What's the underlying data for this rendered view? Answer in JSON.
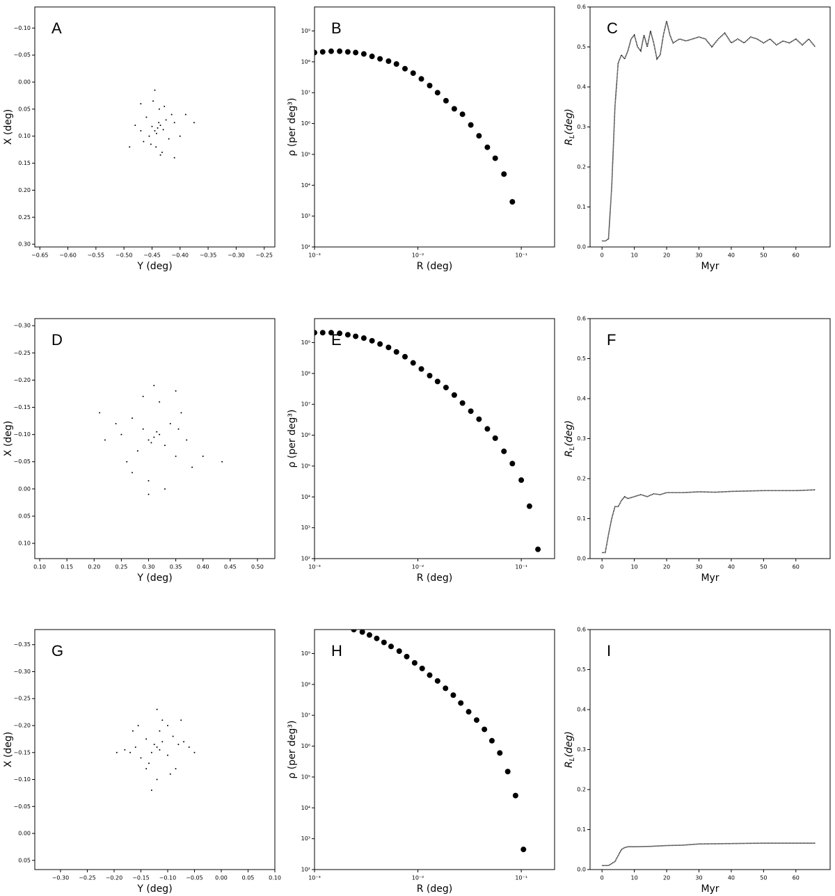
{
  "chart_data": [
    {
      "type": "scatter",
      "label": "A",
      "xlabel": "Y (deg)",
      "ylabel": "X (deg)",
      "color": "#000000",
      "x": [
        -0.44,
        -0.445,
        -0.435,
        -0.43,
        -0.45,
        -0.438,
        -0.442,
        -0.425,
        -0.455,
        -0.46,
        -0.42,
        -0.415,
        -0.465,
        -0.47,
        -0.41,
        -0.437,
        -0.443,
        -0.448,
        -0.432,
        -0.428,
        -0.452,
        -0.48,
        -0.4,
        -0.39,
        -0.49,
        -0.445,
        -0.435,
        -0.47,
        -0.41,
        -0.375
      ],
      "values": [
        0.085,
        0.09,
        0.08,
        0.088,
        0.082,
        0.075,
        0.095,
        0.07,
        0.1,
        0.065,
        0.105,
        0.06,
        0.11,
        0.09,
        0.075,
        0.05,
        0.12,
        0.035,
        0.13,
        0.045,
        0.115,
        0.08,
        0.1,
        0.06,
        0.12,
        0.015,
        0.135,
        0.04,
        0.14,
        0.075
      ],
      "xlim": [
        -0.659,
        -0.231
      ],
      "ylim": [
        0.305,
        -0.139
      ],
      "xticks": [
        {
          "value": -0.65,
          "label": "−0.65"
        },
        {
          "value": -0.6,
          "label": "−0.60"
        },
        {
          "value": -0.55,
          "label": "−0.55"
        },
        {
          "value": -0.5,
          "label": "−0.50"
        },
        {
          "value": -0.45,
          "label": "−0.45"
        },
        {
          "value": -0.4,
          "label": "−0.40"
        },
        {
          "value": -0.35,
          "label": "−0.35"
        },
        {
          "value": -0.3,
          "label": "−0.30"
        },
        {
          "value": -0.25,
          "label": "−0.25"
        }
      ],
      "yticks": [
        {
          "value": -0.1,
          "label": "−0.10"
        },
        {
          "value": -0.05,
          "label": "−0.05"
        },
        {
          "value": 0,
          "label": "0.00"
        },
        {
          "value": 0.05,
          "label": "0.05"
        },
        {
          "value": 0.1,
          "label": "0.10"
        },
        {
          "value": 0.15,
          "label": "0.15"
        },
        {
          "value": 0.2,
          "label": "0.20"
        },
        {
          "value": 0.25,
          "label": "0.25"
        },
        {
          "value": 0.3,
          "label": "0.30"
        }
      ]
    },
    {
      "type": "scatter",
      "label": "B",
      "xlabel": "R (deg)",
      "ylabel": "ρ (per deg³)",
      "color": "#000000",
      "xscale": "log",
      "yscale": "log",
      "x": [
        0.001,
        0.0012,
        0.00145,
        0.00175,
        0.0021,
        0.0025,
        0.003,
        0.0036,
        0.0043,
        0.0052,
        0.0062,
        0.0075,
        0.009,
        0.0108,
        0.013,
        0.0155,
        0.0187,
        0.0225,
        0.027,
        0.0325,
        0.039,
        0.047,
        0.056,
        0.068,
        0.082
      ],
      "values": [
        200000000.0,
        210000000.0,
        220000000.0,
        220000000.0,
        210000000.0,
        200000000.0,
        180000000.0,
        150000000.0,
        125000000.0,
        105000000.0,
        85000000.0,
        60000000.0,
        43000000.0,
        28000000.0,
        17000000.0,
        10000000.0,
        5500000.0,
        3000000.0,
        2000000.0,
        900000.0,
        400000.0,
        170000.0,
        75000.0,
        23000.0,
        2900.0
      ],
      "xlim": [
        0.001,
        0.21
      ],
      "ylim": [
        100,
        6000000000.0
      ],
      "xticks": [
        {
          "value": 0.001,
          "label": "10⁻³"
        },
        {
          "value": 0.01,
          "label": "10⁻²"
        },
        {
          "value": 0.1,
          "label": "10⁻¹"
        }
      ],
      "yticks": [
        {
          "value": 100,
          "label": "10²"
        },
        {
          "value": 1000,
          "label": "10³"
        },
        {
          "value": 10000,
          "label": "10⁴"
        },
        {
          "value": 100000,
          "label": "10⁵"
        },
        {
          "value": 1000000,
          "label": "10⁶"
        },
        {
          "value": 10000000,
          "label": "10⁷"
        },
        {
          "value": 100000000,
          "label": "10⁸"
        },
        {
          "value": 1000000000,
          "label": "10⁹"
        }
      ]
    },
    {
      "type": "line",
      "label": "C",
      "xlabel": "Myr",
      "ylabel": [
        "R",
        "L",
        "(deg)"
      ],
      "color": "#000000",
      "x": [
        0,
        1,
        2,
        3,
        4,
        5,
        6,
        7,
        8,
        9,
        10,
        11,
        12,
        13,
        14,
        15,
        16,
        17,
        18,
        19,
        20,
        21,
        22,
        24,
        26,
        28,
        30,
        32,
        34,
        36,
        38,
        40,
        42,
        44,
        46,
        48,
        50,
        52,
        54,
        56,
        58,
        60,
        62,
        64,
        66
      ],
      "values": [
        0.015,
        0.015,
        0.02,
        0.15,
        0.35,
        0.46,
        0.48,
        0.47,
        0.49,
        0.52,
        0.53,
        0.5,
        0.49,
        0.53,
        0.5,
        0.54,
        0.51,
        0.47,
        0.48,
        0.53,
        0.565,
        0.53,
        0.51,
        0.52,
        0.515,
        0.52,
        0.525,
        0.52,
        0.5,
        0.52,
        0.535,
        0.51,
        0.52,
        0.51,
        0.525,
        0.52,
        0.51,
        0.52,
        0.505,
        0.515,
        0.51,
        0.52,
        0.505,
        0.52,
        0.5
      ],
      "xlim": [
        -3.7,
        70.6
      ],
      "ylim": [
        0,
        0.6
      ],
      "xticks": [
        0,
        10,
        20,
        30,
        40,
        50,
        60
      ],
      "yticks": [
        {
          "value": 0,
          "label": "0.0"
        },
        0.1,
        0.2,
        0.3,
        0.4,
        0.5,
        0.6
      ]
    },
    {
      "type": "scatter",
      "label": "D",
      "xlabel": "Y (deg)",
      "ylabel": "X (deg)",
      "color": "#000000",
      "x": [
        0.31,
        0.32,
        0.3,
        0.305,
        0.315,
        0.29,
        0.33,
        0.28,
        0.34,
        0.27,
        0.35,
        0.26,
        0.36,
        0.25,
        0.37,
        0.31,
        0.3,
        0.32,
        0.24,
        0.38,
        0.22,
        0.4,
        0.21,
        0.435,
        0.3,
        0.35,
        0.27,
        0.33,
        0.29,
        0.355
      ],
      "values": [
        -0.095,
        -0.1,
        -0.09,
        -0.085,
        -0.105,
        -0.11,
        -0.08,
        -0.07,
        -0.12,
        -0.13,
        -0.06,
        -0.05,
        -0.14,
        -0.1,
        -0.09,
        -0.19,
        0.01,
        -0.16,
        -0.12,
        -0.04,
        -0.09,
        -0.06,
        -0.14,
        -0.05,
        -0.015,
        -0.18,
        -0.03,
        0.0,
        -0.17,
        -0.11
      ],
      "xlim": [
        0.091,
        0.532
      ],
      "ylim": [
        0.128,
        -0.313
      ],
      "xticks": [
        {
          "value": 0.1,
          "label": "0.10"
        },
        {
          "value": 0.15,
          "label": "0.15"
        },
        {
          "value": 0.2,
          "label": "0.20"
        },
        {
          "value": 0.25,
          "label": "0.25"
        },
        {
          "value": 0.3,
          "label": "0.30"
        },
        {
          "value": 0.35,
          "label": "0.35"
        },
        {
          "value": 0.4,
          "label": "0.40"
        },
        {
          "value": 0.45,
          "label": "0.45"
        },
        {
          "value": 0.5,
          "label": "0.50"
        }
      ],
      "yticks": [
        {
          "value": -0.3,
          "label": "−0.30"
        },
        {
          "value": -0.25,
          "label": "−0.25"
        },
        {
          "value": -0.2,
          "label": "−0.20"
        },
        {
          "value": -0.15,
          "label": "−0.15"
        },
        {
          "value": -0.1,
          "label": "−0.10"
        },
        {
          "value": -0.05,
          "label": "−0.05"
        },
        {
          "value": 0,
          "label": "0.00"
        },
        {
          "value": 0.05,
          "label": "0.05"
        },
        {
          "value": 0.1,
          "label": "0.10"
        }
      ]
    },
    {
      "type": "scatter",
      "label": "E",
      "xlabel": "R (deg)",
      "ylabel": "ρ (per deg³)",
      "color": "#000000",
      "xscale": "log",
      "yscale": "log",
      "x": [
        0.001,
        0.0012,
        0.00145,
        0.00175,
        0.0021,
        0.0025,
        0.003,
        0.0036,
        0.0043,
        0.0052,
        0.0062,
        0.0075,
        0.009,
        0.0108,
        0.013,
        0.0155,
        0.0187,
        0.0225,
        0.027,
        0.0325,
        0.039,
        0.047,
        0.056,
        0.068,
        0.082,
        0.1,
        0.12,
        0.145
      ],
      "values": [
        2100000000.0,
        2100000000.0,
        2100000000.0,
        2000000000.0,
        1800000000.0,
        1600000000.0,
        1400000000.0,
        1150000000.0,
        900000000.0,
        700000000.0,
        500000000.0,
        350000000.0,
        220000000.0,
        140000000.0,
        85000000.0,
        55000000.0,
        35000000.0,
        20000000.0,
        11000000.0,
        6000000.0,
        3300000.0,
        1600000.0,
        800000.0,
        300000.0,
        120000.0,
        35000.0,
        5000.0,
        200
      ],
      "xlim": [
        0.001,
        0.21
      ],
      "ylim": [
        100,
        6000000000.0
      ],
      "xticks": [
        {
          "value": 0.001,
          "label": "10⁻³"
        },
        {
          "value": 0.01,
          "label": "10⁻²"
        },
        {
          "value": 0.1,
          "label": "10⁻¹"
        }
      ],
      "yticks": [
        {
          "value": 100,
          "label": "10²"
        },
        {
          "value": 1000,
          "label": "10³"
        },
        {
          "value": 10000,
          "label": "10⁴"
        },
        {
          "value": 100000,
          "label": "10⁵"
        },
        {
          "value": 1000000,
          "label": "10⁶"
        },
        {
          "value": 10000000,
          "label": "10⁷"
        },
        {
          "value": 100000000,
          "label": "10⁸"
        },
        {
          "value": 1000000000,
          "label": "10⁹"
        }
      ]
    },
    {
      "type": "line",
      "label": "F",
      "xlabel": "Myr",
      "ylabel": [
        "R",
        "L",
        "(deg)"
      ],
      "color": "#000000",
      "x": [
        0,
        1,
        2,
        3,
        4,
        5,
        6,
        7,
        8,
        10,
        12,
        14,
        16,
        18,
        20,
        25,
        30,
        35,
        40,
        45,
        50,
        55,
        60,
        66
      ],
      "values": [
        0.015,
        0.015,
        0.06,
        0.1,
        0.13,
        0.13,
        0.145,
        0.155,
        0.15,
        0.155,
        0.16,
        0.155,
        0.162,
        0.16,
        0.165,
        0.165,
        0.167,
        0.166,
        0.168,
        0.169,
        0.17,
        0.17,
        0.17,
        0.172
      ],
      "xlim": [
        -3.7,
        70.6
      ],
      "ylim": [
        0,
        0.6
      ],
      "xticks": [
        0,
        10,
        20,
        30,
        40,
        50,
        60
      ],
      "yticks": [
        {
          "value": 0,
          "label": "0.0"
        },
        0.1,
        0.2,
        0.3,
        0.4,
        0.5,
        0.6
      ]
    },
    {
      "type": "scatter",
      "label": "G",
      "xlabel": "Y (deg)",
      "ylabel": "X (deg)",
      "color": "#000000",
      "x": [
        -0.12,
        -0.125,
        -0.115,
        -0.13,
        -0.11,
        -0.14,
        -0.1,
        -0.15,
        -0.09,
        -0.16,
        -0.08,
        -0.17,
        -0.07,
        -0.18,
        -0.06,
        -0.12,
        -0.13,
        -0.11,
        -0.195,
        -0.05,
        -0.12,
        -0.14,
        -0.1,
        -0.115,
        -0.135,
        -0.085,
        -0.155,
        -0.095,
        -0.165,
        -0.075
      ],
      "values": [
        -0.16,
        -0.165,
        -0.155,
        -0.15,
        -0.17,
        -0.175,
        -0.145,
        -0.14,
        -0.18,
        -0.16,
        -0.165,
        -0.15,
        -0.17,
        -0.155,
        -0.16,
        -0.23,
        -0.08,
        -0.21,
        -0.15,
        -0.15,
        -0.1,
        -0.12,
        -0.2,
        -0.19,
        -0.13,
        -0.12,
        -0.2,
        -0.11,
        -0.19,
        -0.21
      ],
      "xlim": [
        -0.348,
        0.1
      ],
      "ylim": [
        0.067,
        -0.378
      ],
      "xticks": [
        {
          "value": -0.3,
          "label": "−0.30"
        },
        {
          "value": -0.25,
          "label": "−0.25"
        },
        {
          "value": -0.2,
          "label": "−0.20"
        },
        {
          "value": -0.15,
          "label": "−0.15"
        },
        {
          "value": -0.1,
          "label": "−0.10"
        },
        {
          "value": -0.05,
          "label": "−0.05"
        },
        {
          "value": 0,
          "label": "0.00"
        },
        {
          "value": 0.05,
          "label": "0.05"
        },
        {
          "value": 0.1,
          "label": "0.10"
        }
      ],
      "yticks": [
        {
          "value": -0.35,
          "label": "−0.35"
        },
        {
          "value": -0.3,
          "label": "−0.30"
        },
        {
          "value": -0.25,
          "label": "−0.25"
        },
        {
          "value": -0.2,
          "label": "−0.20"
        },
        {
          "value": -0.15,
          "label": "−0.15"
        },
        {
          "value": -0.1,
          "label": "−0.10"
        },
        {
          "value": -0.05,
          "label": "−0.05"
        },
        {
          "value": 0,
          "label": "0.00"
        },
        {
          "value": 0.05,
          "label": "0.05"
        }
      ]
    },
    {
      "type": "scatter",
      "label": "H",
      "xlabel": "R (deg)",
      "ylabel": "ρ (per deg³)",
      "color": "#000000",
      "xscale": "log",
      "yscale": "log",
      "x": [
        0.0024,
        0.0029,
        0.0034,
        0.004,
        0.0047,
        0.0055,
        0.0066,
        0.0078,
        0.0093,
        0.011,
        0.013,
        0.0155,
        0.0185,
        0.022,
        0.026,
        0.031,
        0.037,
        0.044,
        0.052,
        0.062,
        0.074,
        0.088,
        0.105
      ],
      "values": [
        6000000000.0,
        5000000000.0,
        4000000000.0,
        3100000000.0,
        2300000000.0,
        1700000000.0,
        1200000000.0,
        800000000.0,
        500000000.0,
        330000000.0,
        200000000.0,
        130000000.0,
        75000000.0,
        45000000.0,
        25000000.0,
        13000000.0,
        7000000.0,
        3500000.0,
        1500000.0,
        600000.0,
        150000.0,
        25000.0,
        450
      ],
      "xlim": [
        0.001,
        0.21
      ],
      "ylim": [
        100,
        6000000000.0
      ],
      "xticks": [
        {
          "value": 0.001,
          "label": "10⁻³"
        },
        {
          "value": 0.01,
          "label": "10⁻²"
        },
        {
          "value": 0.1,
          "label": "10⁻¹"
        }
      ],
      "yticks": [
        {
          "value": 100,
          "label": "10²"
        },
        {
          "value": 1000,
          "label": "10³"
        },
        {
          "value": 10000,
          "label": "10⁴"
        },
        {
          "value": 100000,
          "label": "10⁵"
        },
        {
          "value": 1000000,
          "label": "10⁶"
        },
        {
          "value": 10000000,
          "label": "10⁷"
        },
        {
          "value": 100000000,
          "label": "10⁸"
        },
        {
          "value": 1000000000,
          "label": "10⁹"
        }
      ]
    },
    {
      "type": "line",
      "label": "I",
      "xlabel": "Myr",
      "ylabel": [
        "R",
        "L",
        "(deg)"
      ],
      "color": "#000000",
      "x": [
        0,
        2,
        3,
        4,
        5,
        6,
        7,
        8,
        10,
        15,
        20,
        25,
        30,
        40,
        50,
        60,
        66
      ],
      "values": [
        0.01,
        0.01,
        0.015,
        0.02,
        0.035,
        0.05,
        0.055,
        0.057,
        0.057,
        0.058,
        0.06,
        0.061,
        0.064,
        0.065,
        0.066,
        0.066,
        0.066
      ],
      "xlim": [
        -3.7,
        70.6
      ],
      "ylim": [
        0,
        0.6
      ],
      "xticks": [
        0,
        10,
        20,
        30,
        40,
        50,
        60
      ],
      "yticks": [
        {
          "value": 0,
          "label": "0.0"
        },
        0.1,
        0.2,
        0.3,
        0.4,
        0.5,
        0.6
      ]
    }
  ]
}
